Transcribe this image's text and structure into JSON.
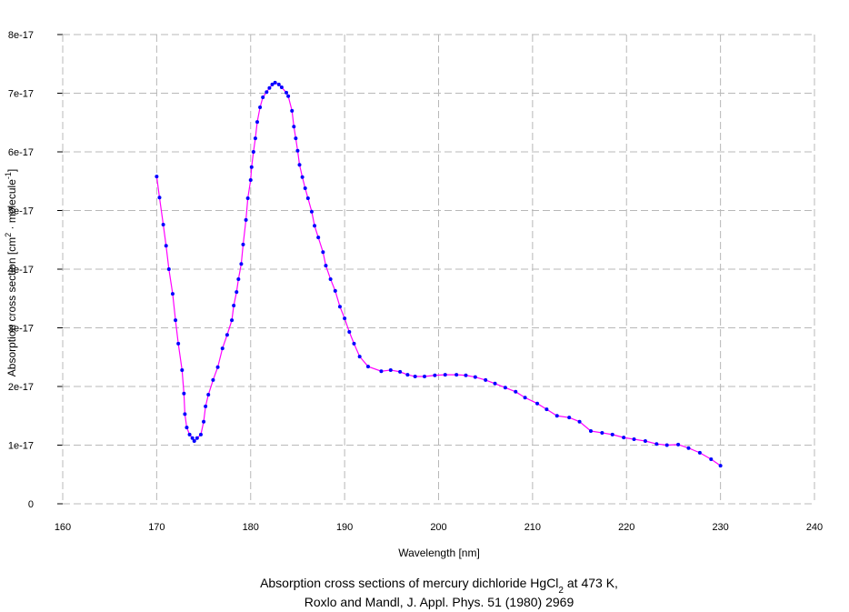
{
  "chart_data": {
    "type": "line",
    "title_line1": [
      "Absorption cross sections of mercury dichloride HgCl",
      "2",
      " at 473 K,"
    ],
    "title_line2": "Roxlo and Mandl, J. Appl. Phys. 51 (1980) 2969",
    "xlabel": "Wavelength [nm]",
    "ylabel": [
      "Absorption cross section [cm",
      "2",
      " · molecule",
      "-1",
      "]"
    ],
    "xlim": [
      160,
      240
    ],
    "xticks": [
      160,
      170,
      180,
      190,
      200,
      210,
      220,
      230,
      240
    ],
    "ylim": [
      0,
      8e-17
    ],
    "yticks": [
      0,
      {
        "value": 1e-17,
        "label": "1e-17"
      },
      {
        "value": 2e-17,
        "label": "2e-17"
      },
      {
        "value": 3e-17,
        "label": "3e-17"
      },
      {
        "value": 4e-17,
        "label": "4e-17"
      },
      {
        "value": 5e-17,
        "label": "5e-17"
      },
      {
        "value": 6e-17,
        "label": "6e-17"
      },
      {
        "value": 7e-17,
        "label": "7e-17"
      },
      {
        "value": 8e-17,
        "label": "8e-17"
      }
    ],
    "grid": true,
    "line_color": "#ff00ff",
    "marker_color": "#0000ff",
    "x": [
      170,
      170.3,
      170.7,
      171,
      171.3,
      171.7,
      172,
      172.3,
      172.7,
      172.9,
      173,
      173.2,
      173.5,
      173.8,
      174,
      174.3,
      174.7,
      175,
      175.2,
      175.5,
      176,
      176.5,
      177,
      177.5,
      178,
      178.2,
      178.5,
      178.7,
      179,
      179.2,
      179.5,
      179.7,
      180,
      180.1,
      180.3,
      180.5,
      180.7,
      181,
      181.3,
      181.7,
      182,
      182.3,
      182.6,
      183,
      183.3,
      183.8,
      184,
      184.4,
      184.6,
      184.8,
      185,
      185.2,
      185.5,
      185.8,
      186.1,
      186.5,
      186.8,
      187.2,
      187.7,
      188,
      188.5,
      189,
      189.5,
      190,
      190.5,
      191,
      191.6,
      192.5,
      193.9,
      194.9,
      195.9,
      196.7,
      197.5,
      198.5,
      199.6,
      200.7,
      201.9,
      202.9,
      203.9,
      205,
      206,
      207.1,
      208.2,
      209.2,
      210.5,
      211.5,
      212.6,
      213.9,
      215,
      216.2,
      217.4,
      218.5,
      219.7,
      220.8,
      222,
      223.2,
      224.3,
      225.5,
      226.6,
      227.8,
      229,
      230
    ],
    "values": [
      5.58e-17,
      5.22e-17,
      4.76e-17,
      4.4e-17,
      4e-17,
      3.58e-17,
      3.13e-17,
      2.73e-17,
      2.28e-17,
      1.88e-17,
      1.53e-17,
      1.3e-17,
      1.18e-17,
      1.12e-17,
      1.07e-17,
      1.12e-17,
      1.18e-17,
      1.4e-17,
      1.66e-17,
      1.86e-17,
      2.11e-17,
      2.33e-17,
      2.65e-17,
      2.88e-17,
      3.13e-17,
      3.38e-17,
      3.61e-17,
      3.83e-17,
      4.09e-17,
      4.42e-17,
      4.84e-17,
      5.21e-17,
      5.52e-17,
      5.74e-17,
      6e-17,
      6.23e-17,
      6.51e-17,
      6.76e-17,
      6.93e-17,
      7.02e-17,
      7.09e-17,
      7.15e-17,
      7.18e-17,
      7.15e-17,
      7.1e-17,
      7.01e-17,
      6.95e-17,
      6.7e-17,
      6.43e-17,
      6.23e-17,
      6.02e-17,
      5.78e-17,
      5.57e-17,
      5.38e-17,
      5.21e-17,
      4.98e-17,
      4.74e-17,
      4.54e-17,
      4.29e-17,
      4.06e-17,
      3.83e-17,
      3.63e-17,
      3.36e-17,
      3.16e-17,
      2.93e-17,
      2.73e-17,
      2.51e-17,
      2.34e-17,
      2.26e-17,
      2.28e-17,
      2.25e-17,
      2.2e-17,
      2.17e-17,
      2.17e-17,
      2.19e-17,
      2.2e-17,
      2.2e-17,
      2.19e-17,
      2.16e-17,
      2.11e-17,
      2.05e-17,
      1.98e-17,
      1.91e-17,
      1.81e-17,
      1.71e-17,
      1.61e-17,
      1.5e-17,
      1.47e-17,
      1.4e-17,
      1.24e-17,
      1.21e-17,
      1.18e-17,
      1.13e-17,
      1.1e-17,
      1.07e-17,
      1.02e-17,
      1e-17,
      1.01e-17,
      9.5e-18,
      8.7e-18,
      7.6e-18,
      6.5e-18
    ]
  }
}
